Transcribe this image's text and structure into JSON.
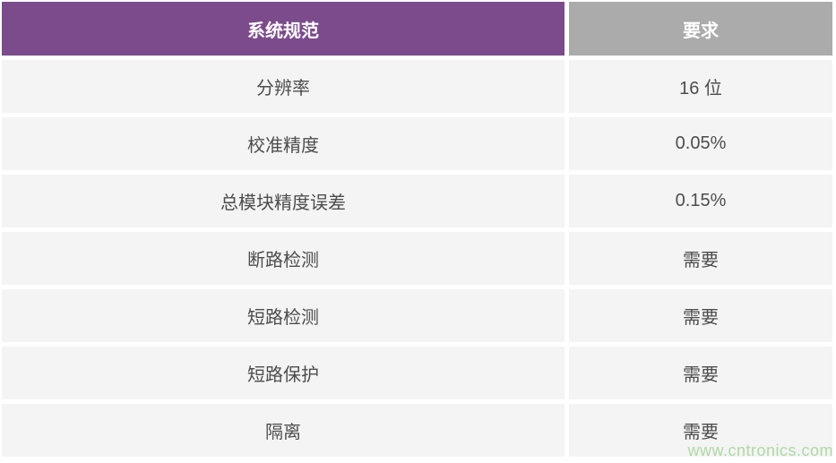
{
  "chart_data": {
    "type": "table",
    "title": "",
    "columns": [
      "系统规范",
      "要求"
    ],
    "rows": [
      [
        "分辨率",
        "16 位"
      ],
      [
        "校准精度",
        "0.05%"
      ],
      [
        "总模块精度误差",
        "0.15%"
      ],
      [
        "断路检测",
        "需要"
      ],
      [
        "短路检测",
        "需要"
      ],
      [
        "短路保护",
        "需要"
      ],
      [
        "隔离",
        "需要"
      ]
    ]
  },
  "table": {
    "columns": [
      {
        "label": "系统规范"
      },
      {
        "label": "要求"
      }
    ],
    "rows": [
      {
        "spec": "分辨率",
        "requirement": "16 位"
      },
      {
        "spec": "校准精度",
        "requirement": "0.05%"
      },
      {
        "spec": "总模块精度误差",
        "requirement": "0.15%"
      },
      {
        "spec": "断路检测",
        "requirement": "需要"
      },
      {
        "spec": "短路检测",
        "requirement": "需要"
      },
      {
        "spec": "短路保护",
        "requirement": "需要"
      },
      {
        "spec": "隔离",
        "requirement": "需要"
      }
    ]
  },
  "watermark": {
    "text": "www.cntronics.com"
  },
  "colors": {
    "header_spec_bg": "#7B4B8C",
    "header_requirement_bg": "#ABABAB",
    "row_bg": "#F4F4F4",
    "body_text": "#4D4D4D",
    "header_text": "#FFFFFF",
    "watermark_text": "#AFD9A5"
  }
}
